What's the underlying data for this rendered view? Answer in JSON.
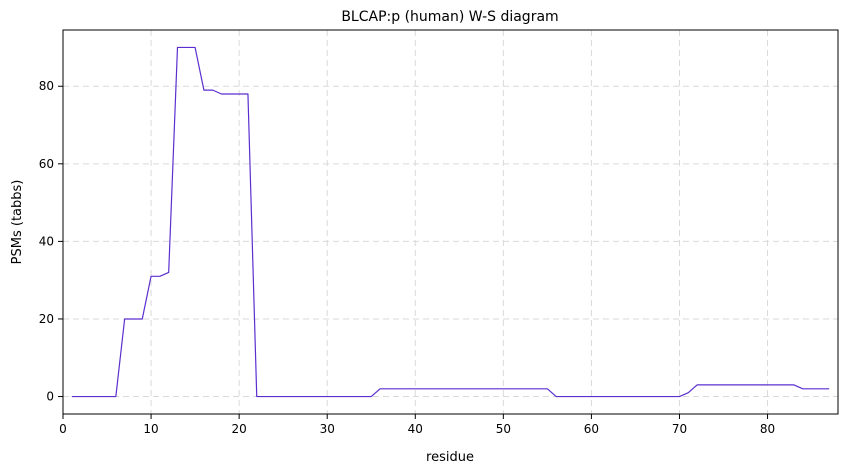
{
  "chart_data": {
    "type": "line",
    "title": "BLCAP:p (human) W-S diagram",
    "xlabel": "residue",
    "ylabel": "PSMs (tabbs)",
    "xlim": [
      0,
      88
    ],
    "ylim": [
      -4.5,
      94.5
    ],
    "xticks": [
      0,
      10,
      20,
      30,
      40,
      50,
      60,
      70,
      80
    ],
    "yticks": [
      0,
      20,
      40,
      60,
      80
    ],
    "grid": true,
    "line_color": "#5b2fcf",
    "series": [
      {
        "x": [
          1,
          2,
          3,
          4,
          5,
          6,
          7,
          8,
          9,
          10,
          11,
          12,
          13,
          14,
          15,
          16,
          17,
          18,
          19,
          20,
          21,
          22,
          23,
          24,
          25,
          26,
          27,
          28,
          29,
          30,
          31,
          32,
          33,
          34,
          35,
          36,
          37,
          38,
          39,
          40,
          41,
          42,
          43,
          44,
          45,
          46,
          47,
          48,
          49,
          50,
          51,
          52,
          53,
          54,
          55,
          56,
          57,
          58,
          59,
          60,
          61,
          62,
          63,
          64,
          65,
          66,
          67,
          68,
          69,
          70,
          71,
          72,
          73,
          74,
          75,
          76,
          77,
          78,
          79,
          80,
          81,
          82,
          83,
          84,
          85,
          86,
          87
        ],
        "y": [
          0,
          0,
          0,
          0,
          0,
          0,
          20,
          20,
          20,
          31,
          31,
          32,
          90,
          90,
          90,
          79,
          79,
          78,
          78,
          78,
          78,
          0,
          0,
          0,
          0,
          0,
          0,
          0,
          0,
          0,
          0,
          0,
          0,
          0,
          0,
          2,
          2,
          2,
          2,
          2,
          2,
          2,
          2,
          2,
          2,
          2,
          2,
          2,
          2,
          2,
          2,
          2,
          2,
          2,
          2,
          0,
          0,
          0,
          0,
          0,
          0,
          0,
          0,
          0,
          0,
          0,
          0,
          0,
          0,
          0,
          1,
          3,
          3,
          3,
          3,
          3,
          3,
          3,
          3,
          3,
          3,
          3,
          3,
          2,
          2,
          2,
          2
        ]
      }
    ]
  }
}
